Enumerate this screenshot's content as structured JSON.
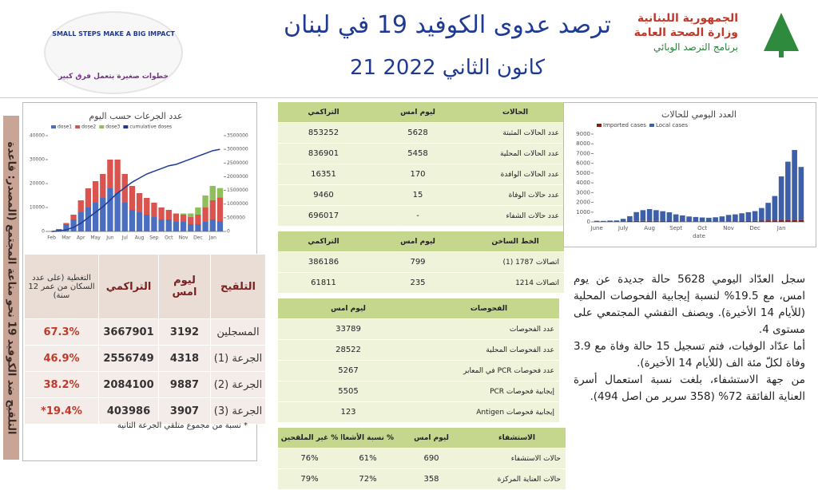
{
  "header": {
    "title": "ترصد عدوى الكوفيد 19 في لبنان",
    "date": "21 كانون الثاني 2022",
    "ministry": [
      "الجمهورية اللبنانية",
      "وزارة الصحة العامة",
      "برنامج الترصد الوبائي"
    ],
    "logo_en": "SMALL STEPS MAKE A BIG IMPACT",
    "logo_ar": "خطوات صغيرة بتعمل فرق كبير"
  },
  "banner": "التلقيح ضد الكوفيد 19 نحو مناعة المجتمع (المصدر: قاعدة",
  "vaccination": {
    "headers": [
      "التلقيح",
      "ليوم امس",
      "التراكمي",
      "التغطية (على عدد السكان من عمر 12 سنة)"
    ],
    "rows": [
      [
        "المسجلين",
        "3192",
        "3667901",
        "67.3%"
      ],
      [
        "الجرعة (1)",
        "4318",
        "2556749",
        "46.9%"
      ],
      [
        "الجرعة (2)",
        "9887",
        "2084100",
        "38.2%"
      ],
      [
        "الجرعة (3)",
        "3907",
        "403986",
        "19.4%*"
      ]
    ],
    "note": "* نسبة من مجموع متلقي الجرعة الثانية"
  },
  "cases": {
    "headers": [
      "الحالات",
      "ليوم امس",
      "التراكمي"
    ],
    "rows": [
      [
        "عدد الحالات المثبتة",
        "5628",
        "853252"
      ],
      [
        "عدد الحالات المحلية",
        "5458",
        "836901"
      ],
      [
        "عدد الحالات الوافدة",
        "170",
        "16351"
      ],
      [
        "عدد حالات الوفاة",
        "15",
        "9460"
      ],
      [
        "عدد حالات الشفاء",
        "-",
        "696017"
      ]
    ]
  },
  "hotline": {
    "headers": [
      "الخط الساخن",
      "ليوم امس",
      "التراكمي"
    ],
    "rows": [
      [
        "اتصالات 1787 (1)",
        "799",
        "386186"
      ],
      [
        "اتصالات 1214",
        "235",
        "61811"
      ]
    ]
  },
  "tests": {
    "headers": [
      "الفحوصات",
      "ليوم امس"
    ],
    "rows": [
      [
        "عدد الفحوصات",
        "33789"
      ],
      [
        "عدد الفحوصات المحلية",
        "28522"
      ],
      [
        "عدد فحوصات PCR في المعابر",
        "5267"
      ],
      [
        "إيجابية فحوصات PCR",
        "5505"
      ],
      [
        "إيجابية فحوصات Antigen",
        "123"
      ]
    ]
  },
  "hospital": {
    "headers": [
      "الاستشفاء",
      "ليوم امس",
      "% نسبة الأشغال",
      "% غير الملقحين"
    ],
    "rows": [
      [
        "حالات الاستشفاء",
        "690",
        "61%",
        "76%"
      ],
      [
        "حالات العناية المركزة",
        "358",
        "72%",
        "79%"
      ]
    ]
  },
  "summary": [
    "سجل العدّاد اليومي 5628 حالة جديدة عن يوم امس، مع 19.5% لنسبة إيجابية الفحوصات المحلية (للأيام 14 الأخيرة). ويصنف التفشي المجتمعي على مستوى 4.",
    "أما عدّاد الوفيات، فتم تسجيل 15 حالة وفاة مع 3.9 وفاة لكلّ مئة الف (للأيام 14 الأخيرة).",
    "من جهة الاستشفاء، بلغت نسبة استعمال أسرة العناية الفائقة 72% (358 سرير من اصل 494)."
  ],
  "chart_data": [
    {
      "type": "bar",
      "title": "عدد الجرعات حسب اليوم",
      "categories": [
        "Feb",
        null,
        "Mar",
        null,
        "Apr",
        null,
        "May",
        null,
        "Jun",
        null,
        "Jul",
        null,
        "Aug",
        null,
        "Sep",
        null,
        "Oct",
        null,
        "Nov",
        null,
        "Dec",
        null,
        "Jan",
        null
      ],
      "series": [
        {
          "name": "dose1",
          "color": "#4a6fc1",
          "values": [
            0,
            1000,
            3000,
            5000,
            8000,
            10000,
            12000,
            14000,
            18000,
            16000,
            12000,
            9000,
            8000,
            7000,
            6000,
            5000,
            5000,
            4000,
            4000,
            3000,
            3000,
            4000,
            5000,
            4318
          ]
        },
        {
          "name": "dose2",
          "color": "#d9534f",
          "values": [
            0,
            0,
            500,
            2000,
            5000,
            8000,
            9000,
            10000,
            12000,
            14000,
            12000,
            10000,
            8000,
            7000,
            6000,
            5000,
            4000,
            3500,
            3000,
            3000,
            4000,
            6000,
            8000,
            9887
          ]
        },
        {
          "name": "dose3",
          "color": "#8fbf5a",
          "values": [
            0,
            0,
            0,
            0,
            0,
            0,
            0,
            0,
            0,
            0,
            0,
            0,
            0,
            0,
            0,
            0,
            0,
            0,
            500,
            1500,
            3000,
            5000,
            6000,
            3907
          ]
        },
        {
          "name": "cumulative doses",
          "color": "#1f3a93",
          "axis": "y2",
          "line": true,
          "values": [
            0,
            20000,
            60000,
            150000,
            300000,
            500000,
            700000,
            900000,
            1150000,
            1400000,
            1600000,
            1800000,
            1950000,
            2100000,
            2200000,
            2300000,
            2400000,
            2450000,
            2550000,
            2650000,
            2750000,
            2850000,
            2950000,
            3000000
          ]
        }
      ],
      "ylim": [
        0,
        40000
      ],
      "yticks": [
        0,
        10000,
        20000,
        30000,
        40000
      ],
      "y2lim": [
        0,
        3500000
      ],
      "y2ticks": [
        0,
        500000,
        1000000,
        1500000,
        2000000,
        2500000,
        3000000,
        3500000
      ]
    },
    {
      "type": "bar",
      "title": "العدد اليومي للحالات",
      "x_label": "date",
      "categories": [
        "June",
        null,
        null,
        null,
        "July",
        null,
        null,
        null,
        "Aug",
        null,
        null,
        null,
        "Sept",
        null,
        null,
        null,
        "Oct",
        null,
        null,
        null,
        "Nov",
        null,
        null,
        null,
        "Dec",
        null,
        null,
        null,
        "Jan",
        null,
        null,
        null
      ],
      "series": [
        {
          "name": "Imported cases",
          "color": "#8b1a1a",
          "values": [
            30,
            30,
            40,
            40,
            60,
            80,
            100,
            100,
            110,
            100,
            90,
            80,
            70,
            60,
            50,
            50,
            50,
            40,
            50,
            60,
            60,
            70,
            80,
            90,
            100,
            120,
            150,
            150,
            160,
            170,
            170,
            170
          ]
        },
        {
          "name": "Local cases",
          "color": "#3d5fa8",
          "values": [
            80,
            70,
            90,
            100,
            250,
            500,
            900,
            1100,
            1200,
            1100,
            1000,
            900,
            700,
            600,
            500,
            450,
            400,
            380,
            420,
            500,
            650,
            700,
            800,
            900,
            1000,
            1300,
            1800,
            2500,
            4500,
            6000,
            7200,
            5458
          ]
        }
      ],
      "ylim": [
        0,
        9000
      ],
      "yticks": [
        0,
        1000,
        2000,
        3000,
        4000,
        5000,
        6000,
        7000,
        8000,
        9000
      ]
    }
  ]
}
